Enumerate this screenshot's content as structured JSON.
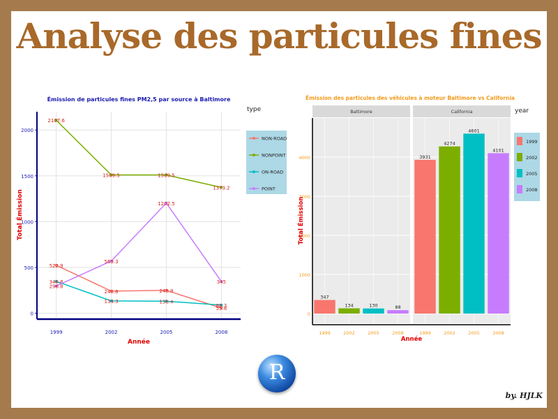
{
  "title": "Analyse des particules fines",
  "signature": "by. HJLK",
  "logo_letter": "R",
  "colors": {
    "background": "#a57a4c",
    "title": "#a8692a"
  },
  "chart_data": [
    {
      "type": "line",
      "title": "Émission de particules fines PM2,5 par source à Baltimore",
      "xlabel": "Année",
      "ylabel": "Total Émission",
      "x": [
        1999,
        2002,
        2005,
        2008
      ],
      "xticklabels": [
        "1999",
        "2002",
        "2005",
        "2008"
      ],
      "yticks": [
        0,
        500,
        1000,
        1500,
        2000
      ],
      "yticklabels": [
        "0",
        "500",
        "1000",
        "1500",
        "2000"
      ],
      "ylim": [
        -50,
        2200
      ],
      "legend_title": "type",
      "legend_position": "right",
      "series": [
        {
          "name": "NON-ROAD",
          "color": "#f8766d",
          "values": [
            522.9,
            240.8,
            248.9,
            55.8
          ],
          "labels": [
            "522.9",
            "240.8",
            "248.9",
            "55.8"
          ]
        },
        {
          "name": "NONPOINT",
          "color": "#7cae00",
          "values": [
            2107.6,
            1509.5,
            1509.5,
            1373.2
          ],
          "labels": [
            "2107.6",
            "1509.5",
            "1509.5",
            "1373.2"
          ]
        },
        {
          "name": "ON-ROAD",
          "color": "#00bfc4",
          "values": [
            346.8,
            134.3,
            130.4,
            88.3
          ],
          "labels": [
            "346.8",
            "134.3",
            "130.4",
            "88.3"
          ]
        },
        {
          "name": "POINT",
          "color": "#c77cff",
          "values": [
            296.8,
            569.3,
            1202.5,
            345
          ],
          "labels": [
            "296.8",
            "569.3",
            "1202.5",
            "345"
          ]
        }
      ]
    },
    {
      "type": "bar",
      "title": "Émission des particules des véhicules à moteur Baltimore vs California",
      "xlabel": "Année",
      "ylabel": "Total Émission",
      "categories": [
        "1999",
        "2002",
        "2005",
        "2008"
      ],
      "yticks": [
        0,
        1000,
        2000,
        3000,
        4000
      ],
      "yticklabels": [
        "0",
        "1000",
        "2000",
        "3000",
        "4000"
      ],
      "ylim": [
        -250,
        5000
      ],
      "legend_title": "year",
      "legend_position": "right",
      "colors": [
        "#f8766d",
        "#7cae00",
        "#00bfc4",
        "#c77cff"
      ],
      "facets": [
        {
          "name": "Baltimore",
          "values": [
            347,
            134,
            130,
            88
          ],
          "labels": [
            "347",
            "134",
            "130",
            "88"
          ]
        },
        {
          "name": "California",
          "values": [
            3931,
            4274,
            4601,
            4101
          ],
          "labels": [
            "3931",
            "4274",
            "4601",
            "4101"
          ]
        }
      ]
    }
  ]
}
